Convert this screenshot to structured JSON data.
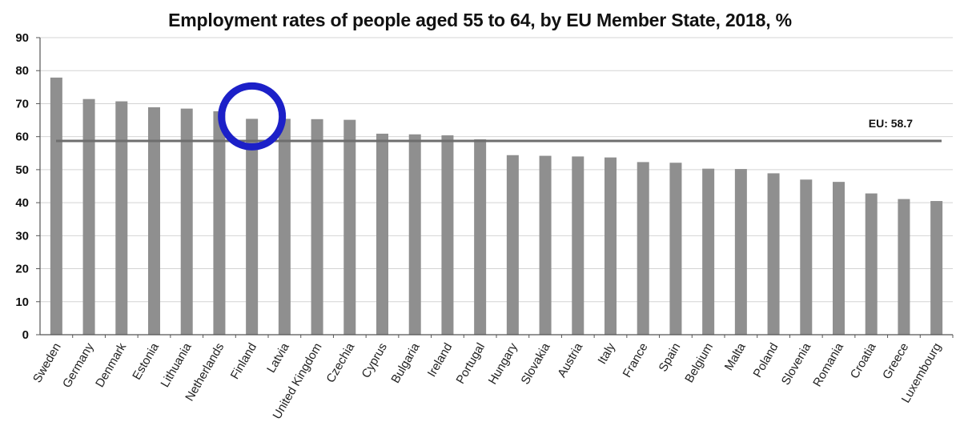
{
  "chart_data": {
    "type": "bar",
    "title": "Employment rates of people aged 55 to 64, by EU Member State, 2018, %",
    "categories": [
      "Sweden",
      "Germany",
      "Denmark",
      "Estonia",
      "Lithuania",
      "Netherlands",
      "Finland",
      "Latvia",
      "United Kingdom",
      "Czechia",
      "Cyprus",
      "Bulgaria",
      "Ireland",
      "Portugal",
      "Hungary",
      "Slovakia",
      "Austria",
      "Italy",
      "France",
      "Spain",
      "Belgium",
      "Malta",
      "Poland",
      "Slovenia",
      "Romania",
      "Croatia",
      "Greece",
      "Luxembourg"
    ],
    "values": [
      77.9,
      71.4,
      70.7,
      68.9,
      68.5,
      67.7,
      65.4,
      65.4,
      65.3,
      65.1,
      60.9,
      60.7,
      60.4,
      59.2,
      54.4,
      54.2,
      54.0,
      53.7,
      52.3,
      52.1,
      50.3,
      50.2,
      48.9,
      47.0,
      46.3,
      42.8,
      41.1,
      40.5
    ],
    "ylim": [
      0,
      90
    ],
    "yticks": [
      "0",
      "10",
      "20",
      "30",
      "40",
      "50",
      "60",
      "70",
      "80",
      "90"
    ],
    "grid": true,
    "bar_color": "#8f8f8f",
    "reference_line": {
      "label": "EU: 58.7",
      "value": 58.7,
      "color": "#6e6e6e"
    },
    "highlight": {
      "category": "Finland",
      "shape": "circle",
      "color": "#1c20c8"
    }
  }
}
